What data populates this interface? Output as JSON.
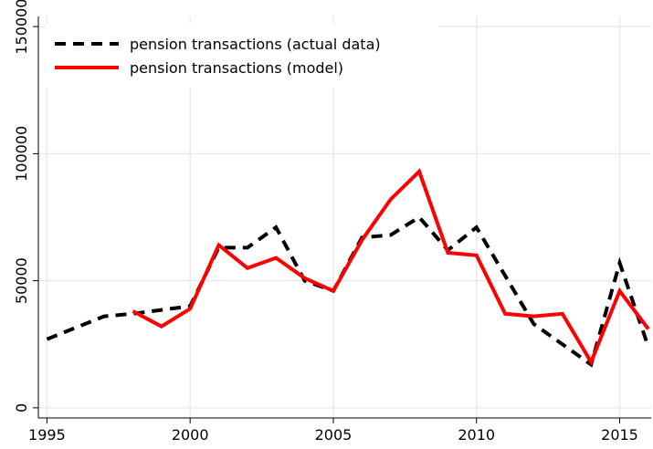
{
  "chart_data": {
    "type": "line",
    "x": [
      1995,
      1996,
      1997,
      1998,
      1999,
      2000,
      2001,
      2002,
      2003,
      2004,
      2005,
      2006,
      2007,
      2008,
      2009,
      2010,
      2011,
      2012,
      2013,
      2014,
      2015,
      2016
    ],
    "series": [
      {
        "name": "pension transactions (actual data)",
        "color": "#000000",
        "dash": true,
        "values": [
          27000,
          31500,
          36000,
          37000,
          38500,
          40000,
          63000,
          63000,
          71000,
          50000,
          46000,
          67000,
          68000,
          75000,
          62000,
          71000,
          52000,
          33000,
          25000,
          17000,
          57000,
          24000
        ]
      },
      {
        "name": "pension transactions (model)",
        "color": "#ff0000",
        "dash": false,
        "values": [
          null,
          null,
          null,
          38000,
          32000,
          39000,
          64000,
          55000,
          59000,
          51000,
          46000,
          66000,
          82000,
          93000,
          61000,
          60000,
          37000,
          36000,
          37000,
          18000,
          46000,
          31000
        ]
      }
    ],
    "xlim": [
      1994.7,
      2016.1
    ],
    "ylim": [
      -4000,
      154000
    ],
    "xticks": [
      1995,
      2000,
      2005,
      2010,
      2015
    ],
    "yticks": [
      0,
      50000,
      100000,
      150000
    ],
    "grid": true,
    "legend": "upper-left"
  }
}
